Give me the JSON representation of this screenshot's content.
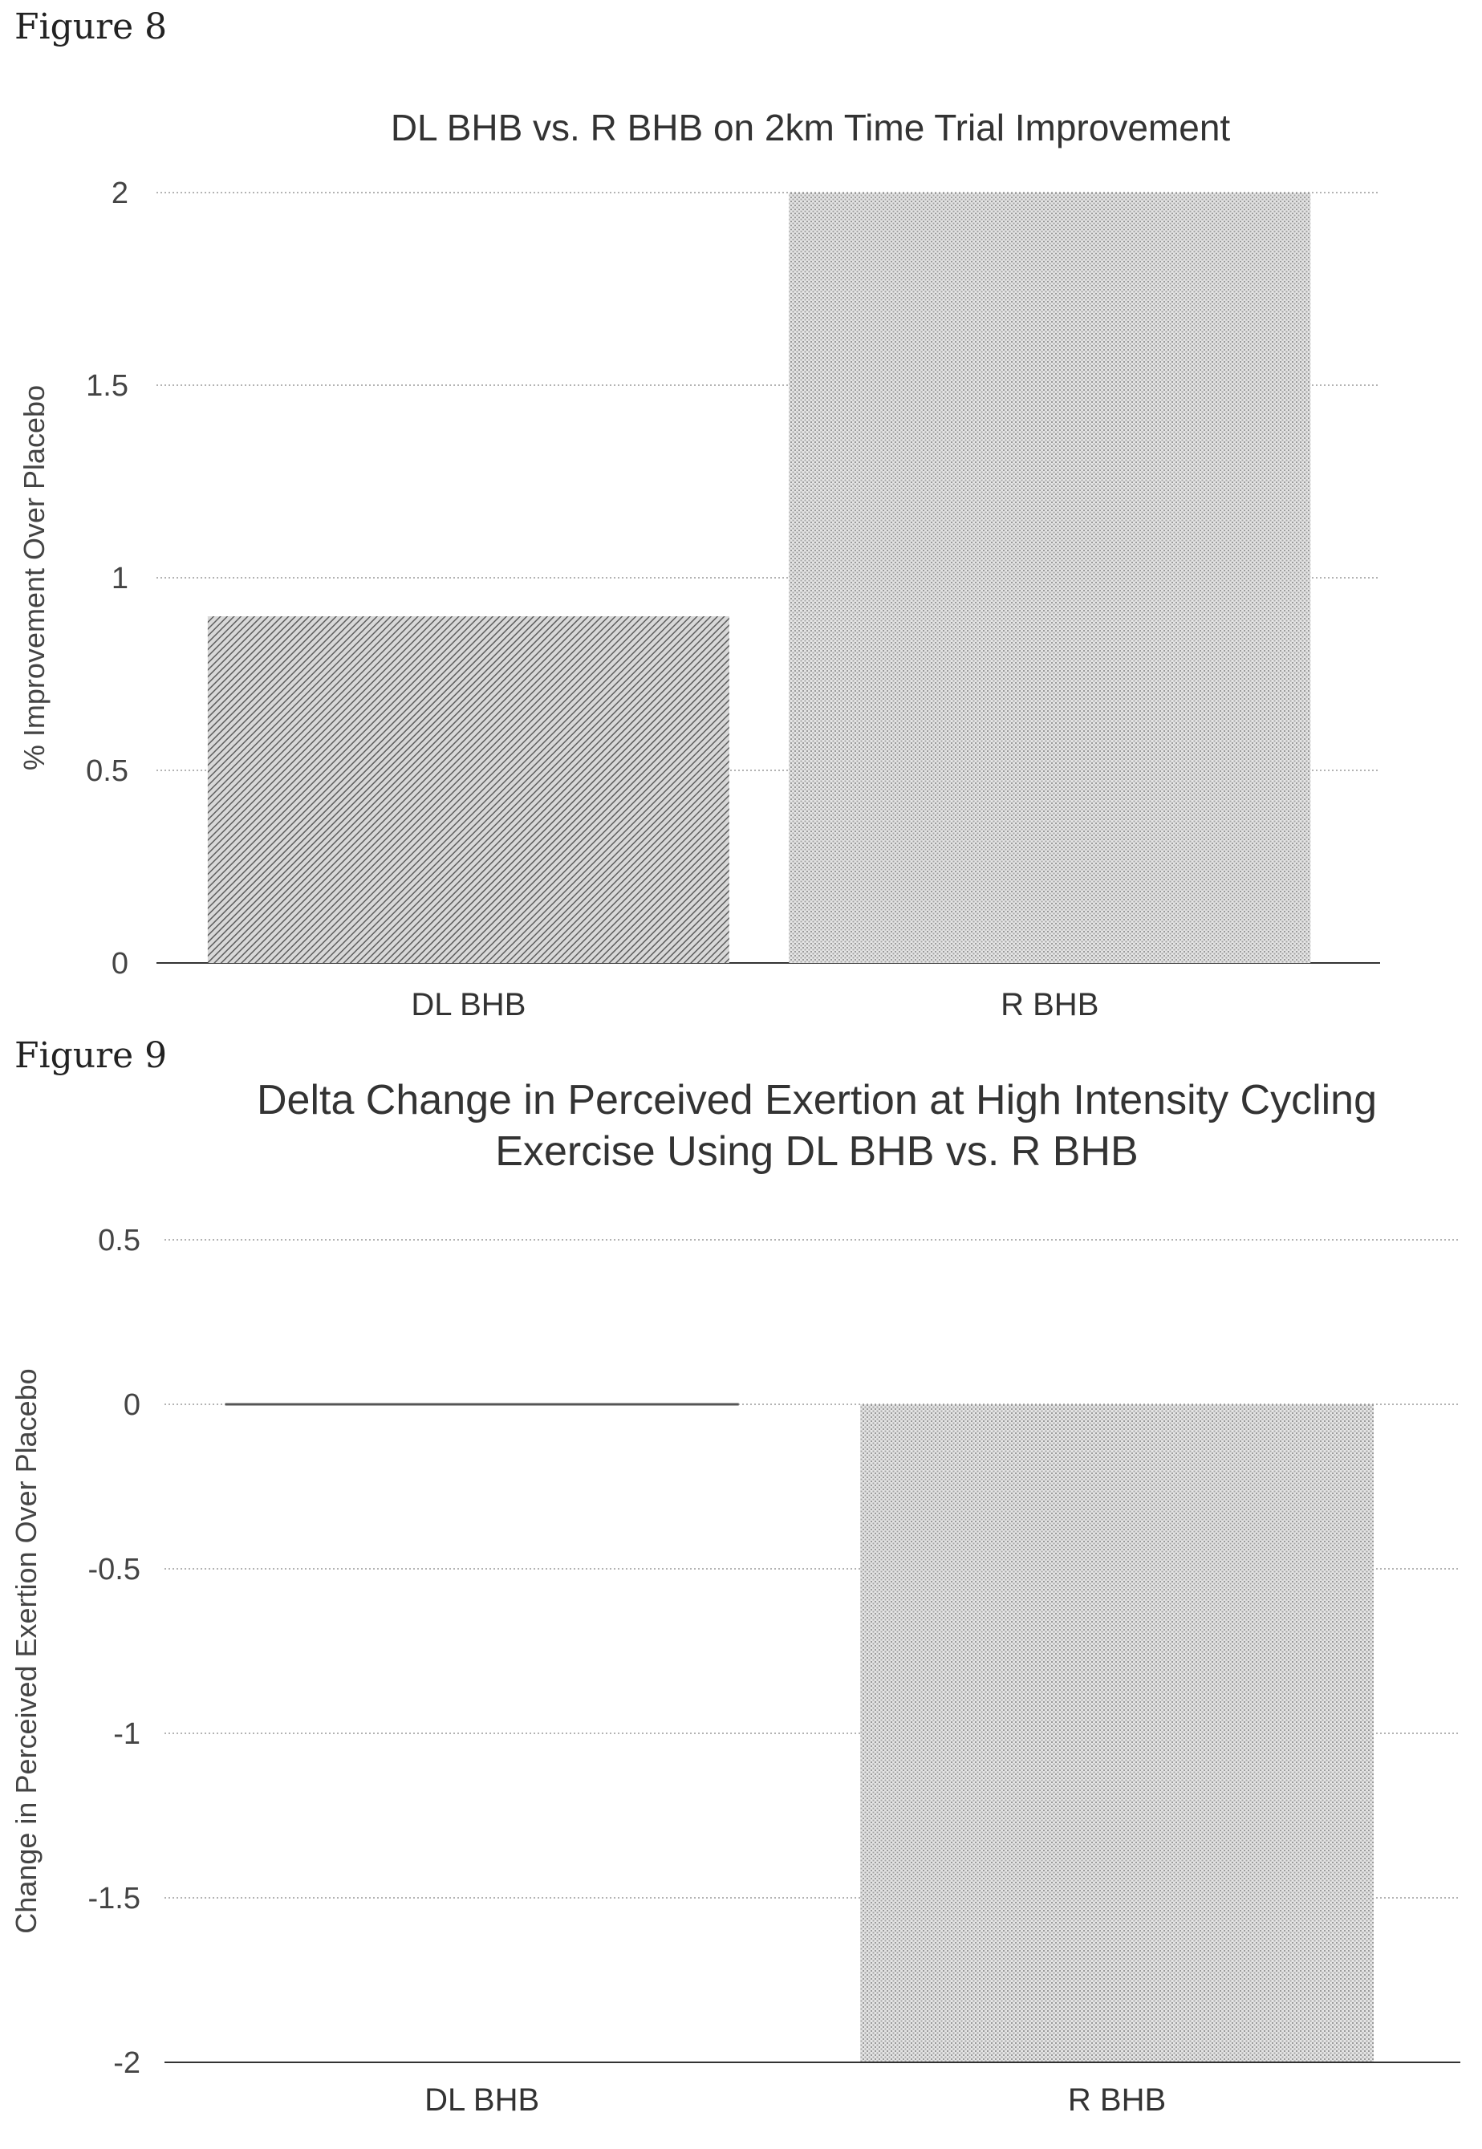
{
  "figures": [
    {
      "label": "Figure 8"
    },
    {
      "label": "Figure 9"
    }
  ],
  "colors": {
    "bar_dark": "#8a8a8a",
    "bar_light": "#c6c6c6",
    "grid": "#9a9a9a",
    "axis": "#333333"
  },
  "chart_data": [
    {
      "type": "bar",
      "title": [
        "DL BHB vs. R BHB on 2km Time Trial Improvement"
      ],
      "xlabel": "",
      "ylabel": "% Improvement Over Placebo",
      "categories": [
        "DL BHB",
        "R BHB"
      ],
      "values": [
        0.9,
        2.0
      ],
      "ylim": [
        0,
        2
      ],
      "yticks": [
        0,
        0.5,
        1,
        1.5,
        2
      ],
      "ytick_labels": [
        "0",
        "0.5",
        "1",
        "1.5",
        "2"
      ],
      "grid": true,
      "bar_patterns": [
        "diagonal-hatch",
        "dots"
      ]
    },
    {
      "type": "bar",
      "title": [
        "Delta Change in Perceived Exertion at High Intensity Cycling",
        "Exercise Using DL BHB vs. R BHB"
      ],
      "xlabel": "",
      "ylabel": "Change in Perceived Exertion Over Placebo",
      "categories": [
        "DL BHB",
        "R BHB"
      ],
      "values": [
        0,
        -2.0
      ],
      "ylim": [
        -2,
        0.5
      ],
      "yticks": [
        -2,
        -1.5,
        -1,
        -0.5,
        0,
        0.5
      ],
      "ytick_labels": [
        "-2",
        "-1.5",
        "-1",
        "-0.5",
        "0",
        "0.5"
      ],
      "grid": true,
      "bar_patterns": [
        "diagonal-hatch",
        "dots"
      ]
    }
  ]
}
